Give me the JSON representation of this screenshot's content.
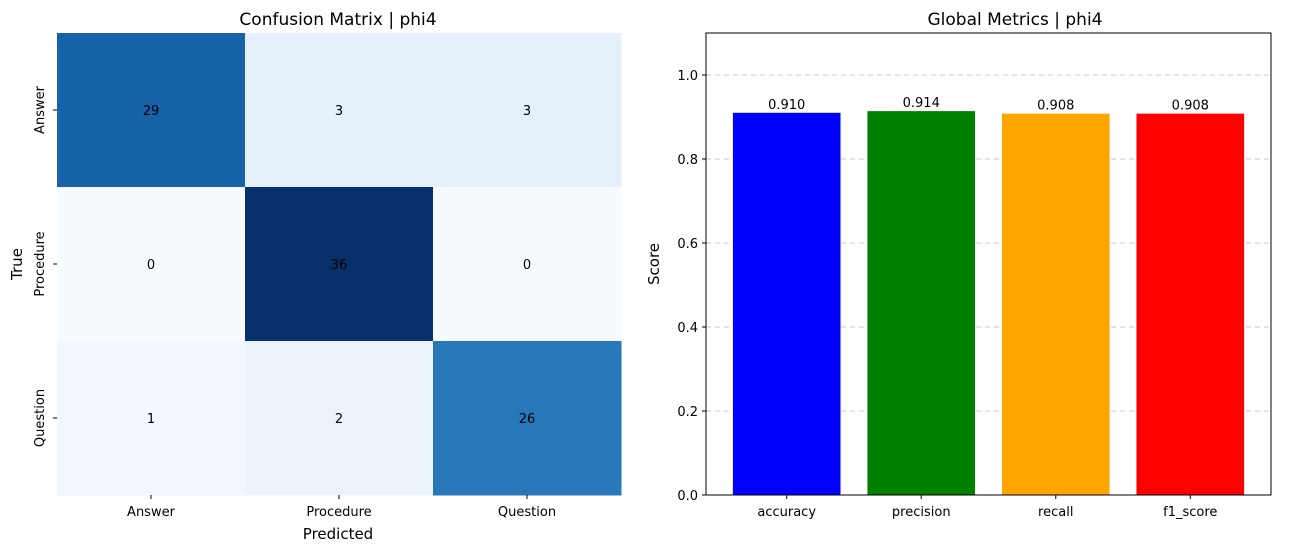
{
  "chart_data": [
    {
      "type": "heatmap",
      "title": "Confusion Matrix | phi4",
      "xlabel": "Predicted",
      "ylabel": "True",
      "x_categories": [
        "Answer",
        "Procedure",
        "Question"
      ],
      "y_categories": [
        "Answer",
        "Procedure",
        "Question"
      ],
      "values": [
        [
          29,
          3,
          3
        ],
        [
          0,
          36,
          0
        ],
        [
          1,
          2,
          26
        ]
      ],
      "colormap": "Blues",
      "vmin": 0,
      "vmax": 36,
      "colorbar": false
    },
    {
      "type": "bar",
      "title": "Global Metrics | phi4",
      "xlabel": "",
      "ylabel": "Score",
      "categories": [
        "accuracy",
        "precision",
        "recall",
        "f1_score"
      ],
      "values": [
        0.91,
        0.914,
        0.908,
        0.908
      ],
      "value_labels": [
        "0.910",
        "0.914",
        "0.908",
        "0.908"
      ],
      "colors": [
        "#0000ff",
        "#008000",
        "#ffa500",
        "#ff0000"
      ],
      "ylim": [
        0,
        1.1
      ],
      "yticks": [
        "0.0",
        "0.2",
        "0.4",
        "0.6",
        "0.8",
        "1.0"
      ],
      "grid": "y-dashed"
    }
  ]
}
